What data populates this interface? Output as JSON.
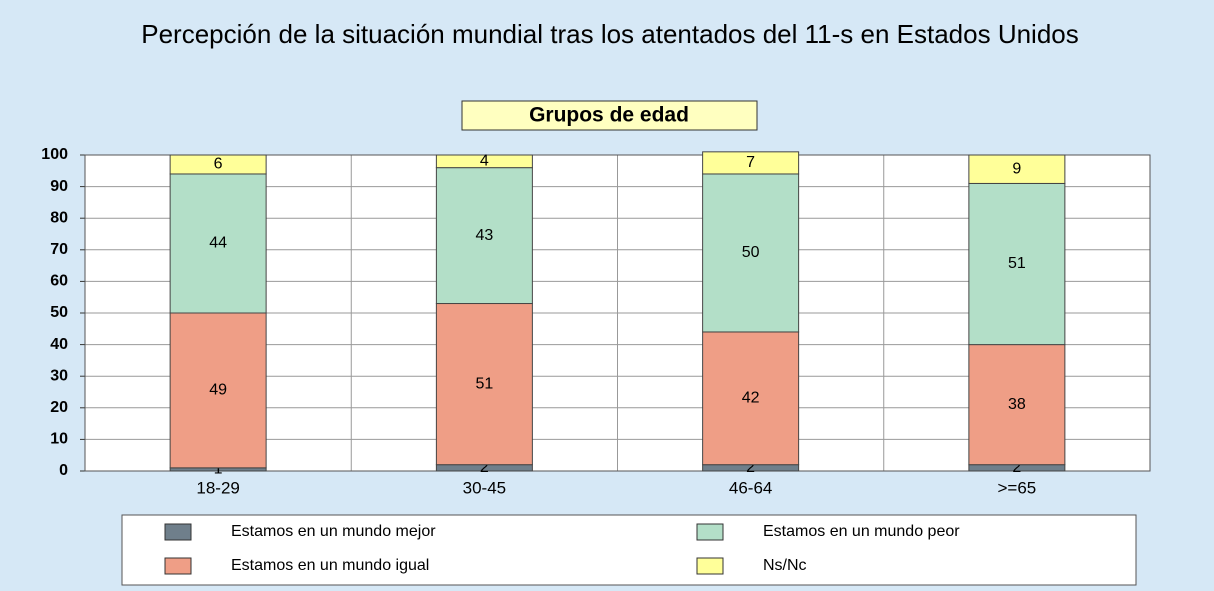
{
  "chart_data": {
    "type": "stacked_bar",
    "title": "Percepción de la situación mundial tras los atentados del 11-s en Estados Unidos",
    "subtitle": "Grupos de edad",
    "categories": [
      "18-29",
      "30-45",
      "46-64",
      ">=65"
    ],
    "series": [
      {
        "name": "Estamos en un mundo mejor",
        "color": "#6f7f8b",
        "values": [
          1,
          2,
          2,
          2
        ]
      },
      {
        "name": "Estamos en un mundo igual",
        "color": "#ef9e86",
        "values": [
          49,
          51,
          42,
          38
        ]
      },
      {
        "name": "Estamos en un mundo peor",
        "color": "#b3dfc8",
        "values": [
          44,
          43,
          50,
          51
        ]
      },
      {
        "name": "Ns/Nc",
        "color": "#ffff99",
        "values": [
          6,
          4,
          7,
          9
        ]
      }
    ],
    "ylim": [
      0,
      100
    ],
    "yticks": [
      0,
      10,
      20,
      30,
      40,
      50,
      60,
      70,
      80,
      90,
      100
    ],
    "grid": true,
    "legend": "bottom"
  }
}
